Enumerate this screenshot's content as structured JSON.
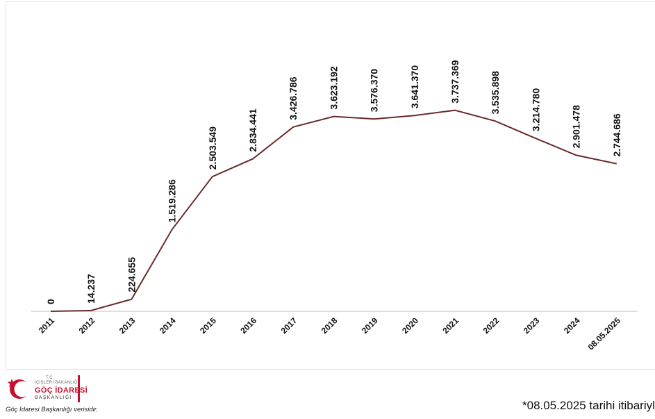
{
  "chart_data": {
    "type": "line",
    "categories": [
      "2011",
      "2012",
      "2013",
      "2014",
      "2015",
      "2016",
      "2017",
      "2018",
      "2019",
      "2020",
      "2021",
      "2022",
      "2023",
      "2024",
      "08.05.2025"
    ],
    "values": [
      0,
      14237,
      224655,
      1519286,
      2503549,
      2834441,
      3426786,
      3623192,
      3576370,
      3641370,
      3737369,
      3535898,
      3214780,
      2901478,
      2744686
    ],
    "labels": [
      "0",
      "14.237",
      "224.655",
      "1.519.286",
      "2.503.549",
      "2.834.441",
      "3.426.786",
      "3.623.192",
      "3.576.370",
      "3.641.370",
      "3.737.369",
      "3.535.898",
      "3.214.780",
      "2.901.478",
      "2.744.686"
    ],
    "title": "",
    "xlabel": "",
    "ylabel": "",
    "ylim": [
      0,
      4000000
    ],
    "grid": false,
    "line_color": "#6b2a2a"
  },
  "footer": {
    "logo_tc": "T.C.",
    "logo_ministry": "İÇİŞLERİ BAKANLIĞI",
    "logo_name": "GÖÇ İDARESİ",
    "logo_sub": "BAŞKANLIĞI",
    "source": "Göç İdaresi Başkanlığı verisidir.",
    "footnote": "*08.05.2025 tarihi itibariyle"
  },
  "colors": {
    "brand_red": "#c8102e",
    "axis": "#bfbfbf"
  }
}
